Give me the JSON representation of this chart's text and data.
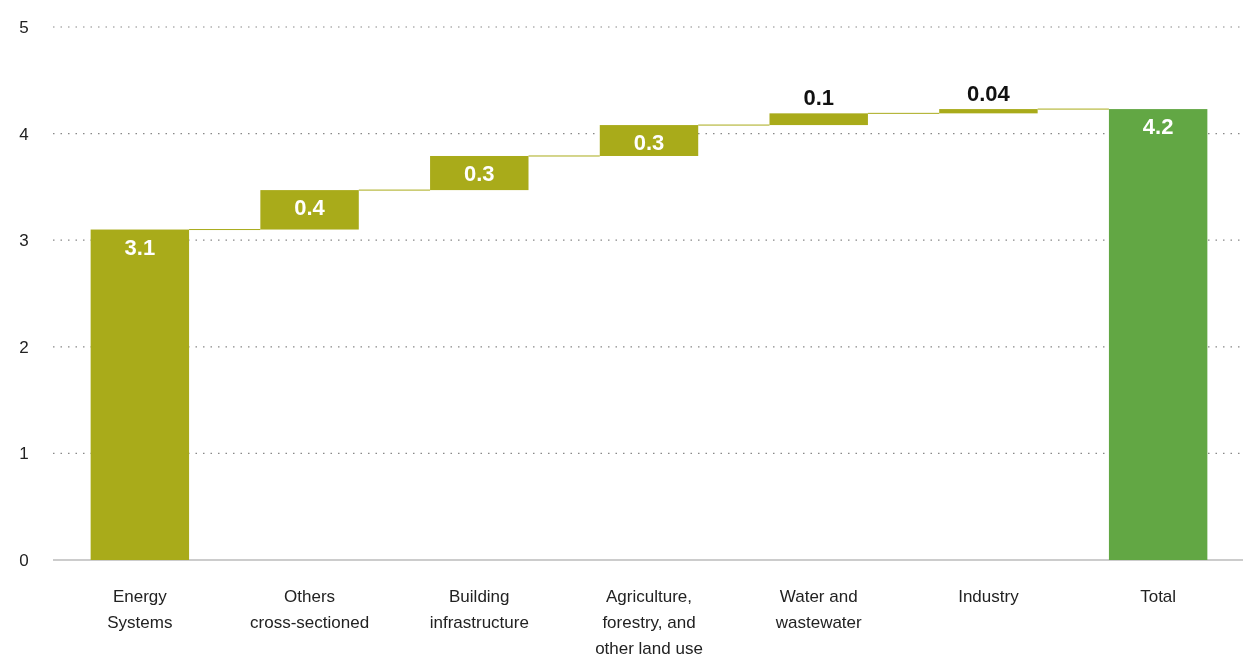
{
  "chart_data": {
    "type": "bar",
    "categories": [
      "Energy Systems",
      "Others cross-sectioned",
      "Building infrastructure",
      "Agriculture, forestry, and other land use",
      "Water and wastewater",
      "Industry",
      "Total"
    ],
    "values": [
      3.1,
      0.37,
      0.32,
      0.29,
      0.11,
      0.04,
      4.23
    ],
    "base": [
      0,
      3.1,
      3.47,
      3.79,
      4.08,
      4.19,
      0
    ],
    "colors": [
      "#a9ab1a",
      "#a9ab1a",
      "#a9ab1a",
      "#a9ab1a",
      "#a9ab1a",
      "#a9ab1a",
      "#62a744"
    ],
    "value_labels": [
      "3.1",
      "0.4",
      "0.3",
      "0.3",
      "0.1",
      "0.04",
      "4.2"
    ],
    "ylim": [
      0,
      5
    ],
    "yticks": [
      0,
      1,
      2,
      3,
      4,
      5
    ],
    "grid": "y"
  }
}
